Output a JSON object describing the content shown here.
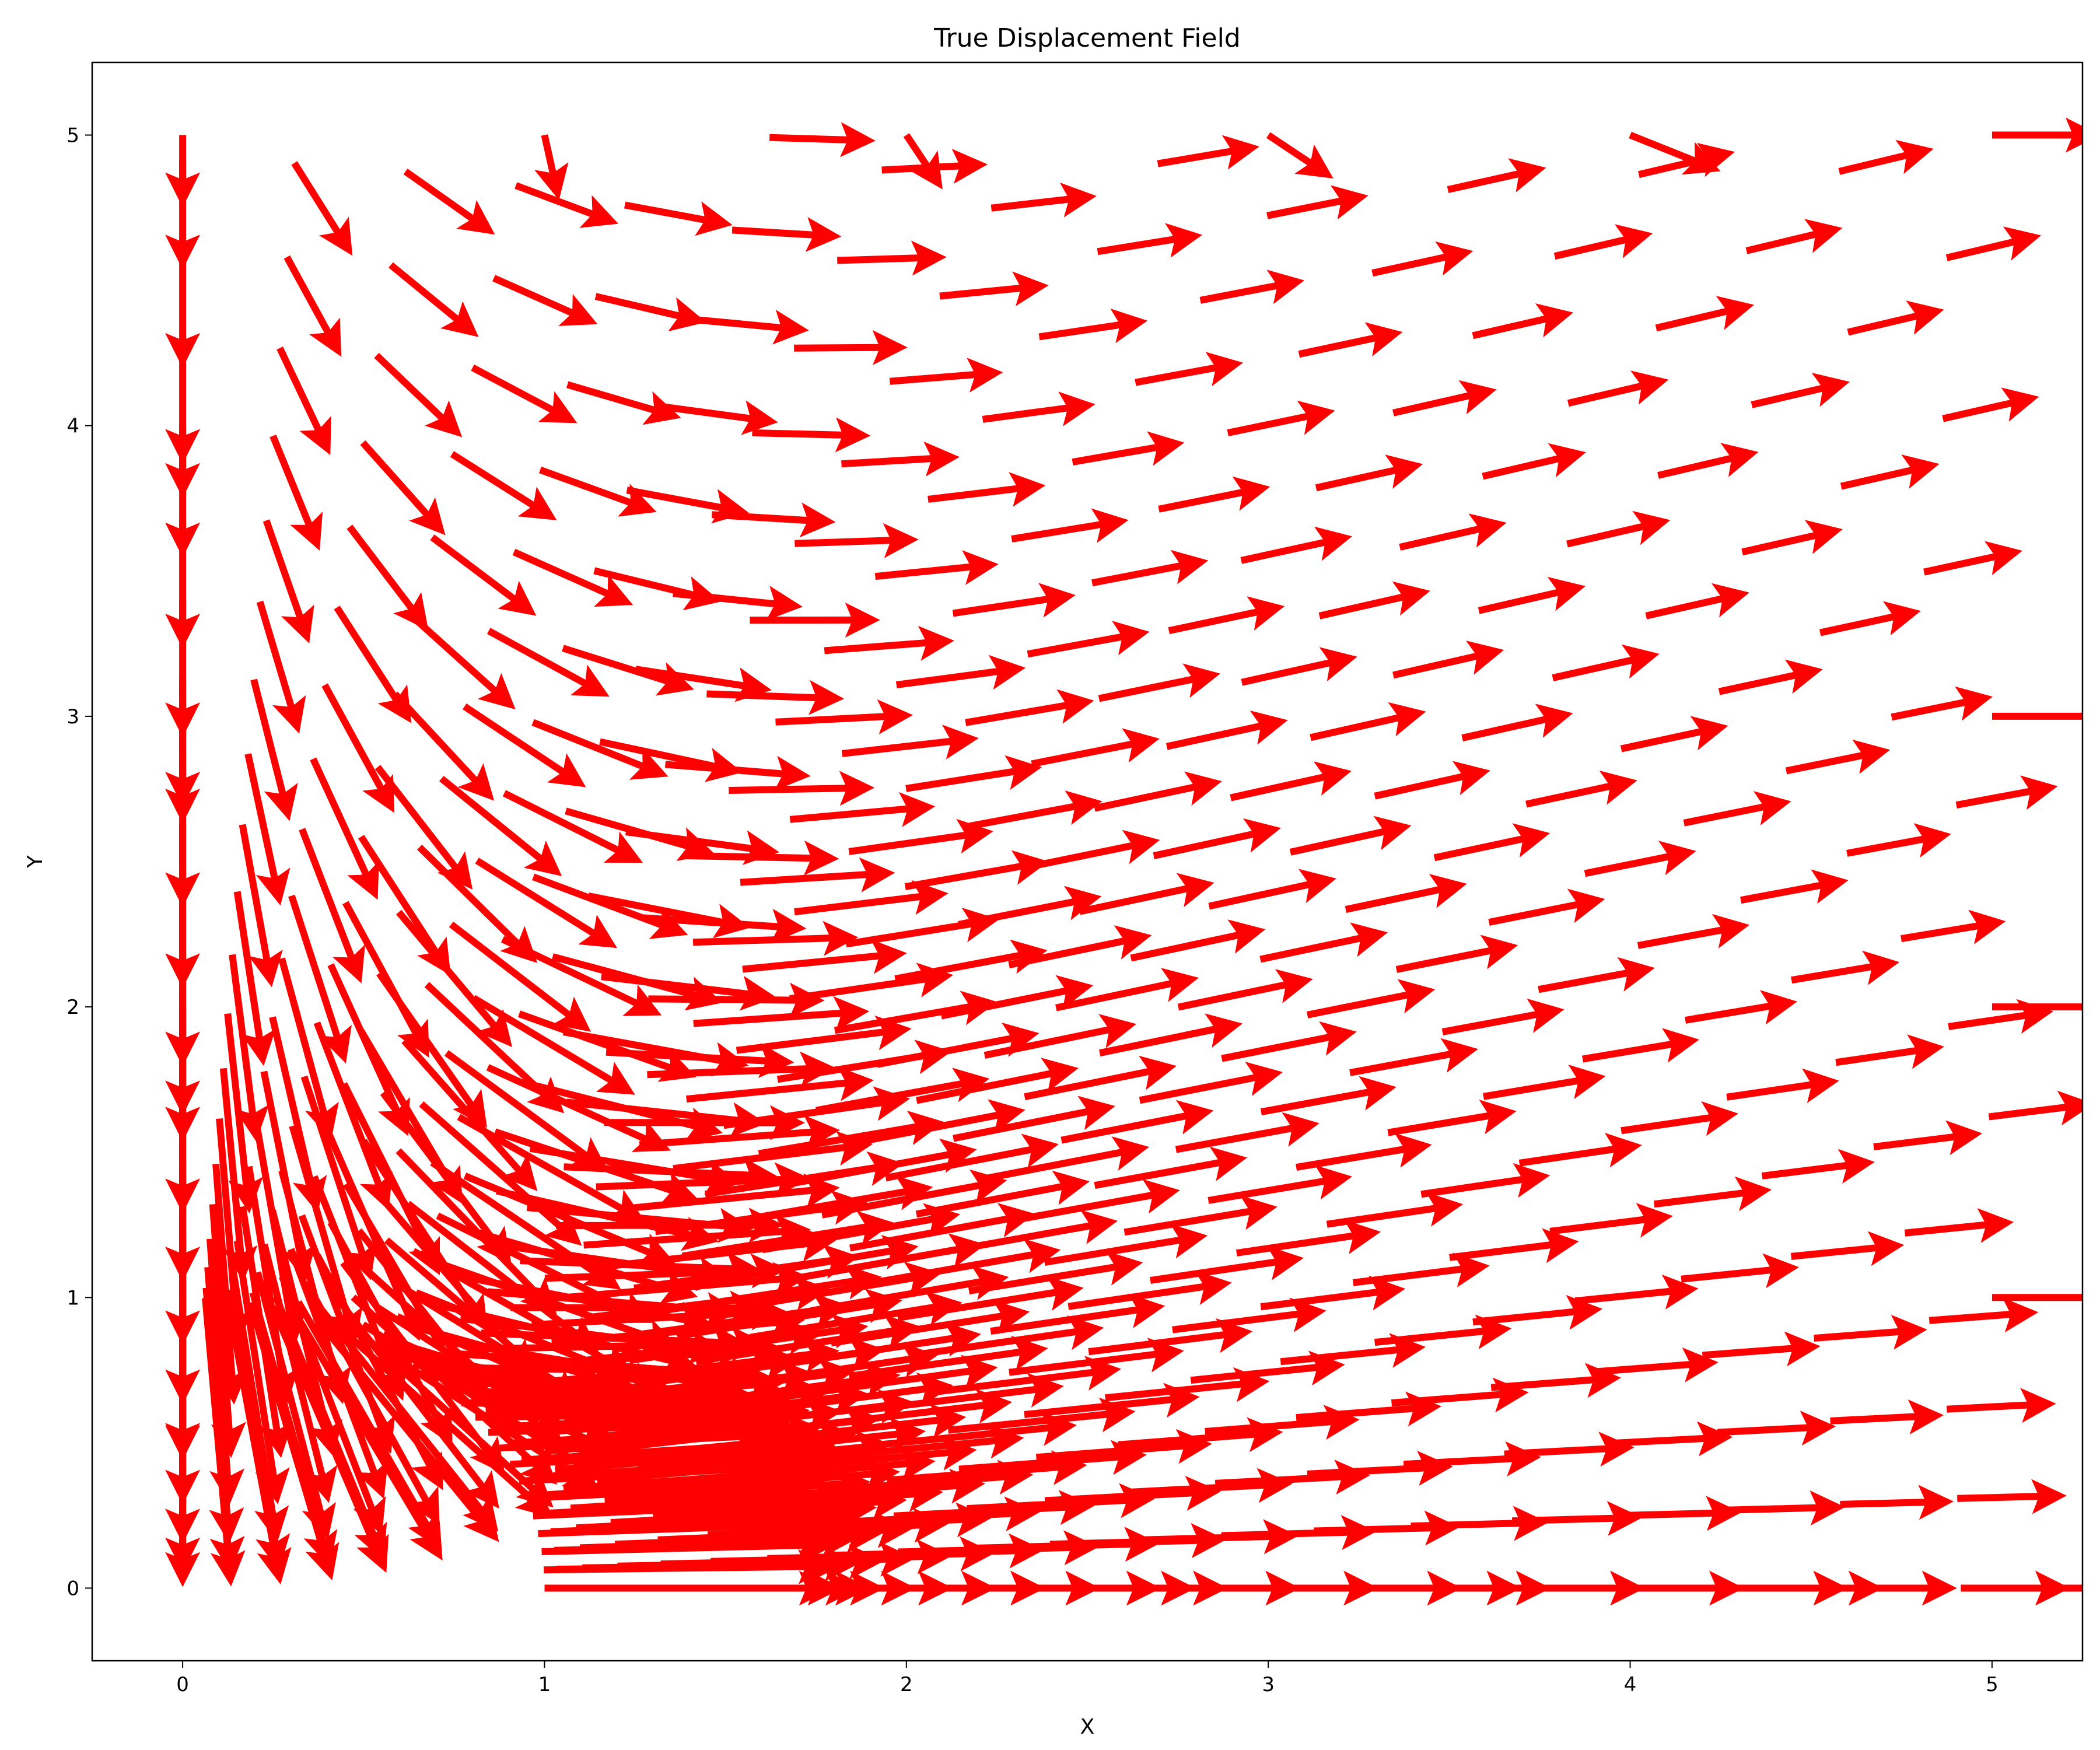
{
  "chart_data": {
    "type": "quiver",
    "title": "True Displacement Field",
    "xlabel": "X",
    "ylabel": "Y",
    "xlim": [
      -0.25,
      5.25
    ],
    "ylim": [
      -0.25,
      5.25
    ],
    "x_ticks": [
      0,
      1,
      2,
      3,
      4,
      5
    ],
    "y_ticks": [
      0,
      1,
      2,
      3,
      4,
      5
    ],
    "grid": false,
    "arrow_color": "#ff0000",
    "domain": {
      "description_of_points": "polar grid of arrow origins outside the quarter-circle hole at the origin",
      "hole_radius": 1.0,
      "outer_extent": 5.0
    },
    "series": [
      {
        "values": [
          {
            "x": 1.0,
            "y": 0.0,
            "u": 0.9,
            "v": 0.0
          },
          {
            "x": 2.0,
            "y": 0.0,
            "u": 0.8,
            "v": 0.0
          },
          {
            "x": 3.0,
            "y": 0.0,
            "u": 0.7,
            "v": 0.0
          },
          {
            "x": 4.0,
            "y": 0.0,
            "u": 0.7,
            "v": 0.0
          },
          {
            "x": 5.0,
            "y": 0.0,
            "u": 0.7,
            "v": 0.0
          },
          {
            "x": 0.0,
            "y": 1.0,
            "u": 0.0,
            "v": -0.45
          },
          {
            "x": 0.0,
            "y": 2.0,
            "u": 0.0,
            "v": -0.3
          },
          {
            "x": 0.0,
            "y": 3.0,
            "u": 0.0,
            "v": -0.25
          },
          {
            "x": 0.0,
            "y": 4.0,
            "u": 0.0,
            "v": -0.2
          },
          {
            "x": 0.0,
            "y": 5.0,
            "u": 0.0,
            "v": -0.2
          },
          {
            "x": 5.0,
            "y": 5.0,
            "u": 0.3,
            "v": 0.0
          },
          {
            "x": 4.0,
            "y": 5.0,
            "u": 0.25,
            "v": -0.1
          },
          {
            "x": 3.0,
            "y": 5.0,
            "u": 0.18,
            "v": -0.12
          },
          {
            "x": 2.0,
            "y": 5.0,
            "u": 0.1,
            "v": -0.15
          },
          {
            "x": 1.0,
            "y": 5.0,
            "u": 0.04,
            "v": -0.18
          },
          {
            "x": 5.0,
            "y": 3.0,
            "u": 0.35,
            "v": 0.0
          },
          {
            "x": 5.0,
            "y": 2.0,
            "u": 0.45,
            "v": 0.0
          },
          {
            "x": 5.0,
            "y": 1.0,
            "u": 0.55,
            "v": 0.0
          }
        ]
      }
    ]
  }
}
